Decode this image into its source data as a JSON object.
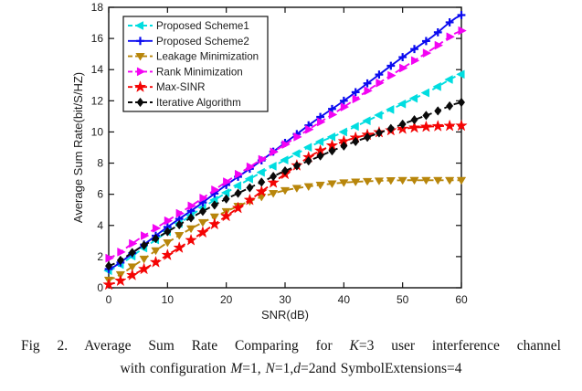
{
  "figure": {
    "caption": {
      "line1_runs": [
        {
          "text": "Fig 2. ",
          "italic": false
        },
        {
          "text": "Average Sum Rate Comparing for ",
          "italic": false
        },
        {
          "text": "K",
          "italic": true
        },
        {
          "text": "=3 user interference channel",
          "italic": false
        }
      ],
      "line2_runs": [
        {
          "text": "with configuration ",
          "italic": false
        },
        {
          "text": "M",
          "italic": true
        },
        {
          "text": "=1, ",
          "italic": false
        },
        {
          "text": "N",
          "italic": true
        },
        {
          "text": "=1,",
          "italic": false
        },
        {
          "text": "d",
          "italic": true
        },
        {
          "text": "=2and SymbolExtensions=4",
          "italic": false
        }
      ]
    }
  },
  "chart_data": {
    "type": "line",
    "title": "",
    "xlabel": "SNR(dB)",
    "ylabel": "Average Sum Rate(bit/S/HZ)",
    "xlim": [
      0,
      60
    ],
    "ylim": [
      0,
      18
    ],
    "xticks": [
      0,
      10,
      20,
      30,
      40,
      50,
      60
    ],
    "yticks": [
      0,
      2,
      4,
      6,
      8,
      10,
      12,
      14,
      16,
      18
    ],
    "grid": false,
    "legend_position": "top-left",
    "marker_step_db": 2,
    "x": [
      0,
      5,
      10,
      15,
      20,
      25,
      30,
      35,
      40,
      45,
      50,
      55,
      60
    ],
    "series": [
      {
        "name": "Proposed Scheme1",
        "color": "#00dde0",
        "marker": "triangle-left",
        "line": "dashed",
        "values": [
          1.1,
          2.3,
          3.6,
          4.9,
          6.1,
          7.2,
          8.2,
          9.2,
          10.0,
          10.9,
          11.8,
          12.7,
          13.7
        ]
      },
      {
        "name": "Proposed Scheme2",
        "color": "#0a0af0",
        "marker": "plus",
        "line": "solid",
        "values": [
          1.2,
          2.5,
          3.9,
          5.2,
          6.6,
          7.9,
          9.3,
          10.7,
          12.0,
          13.4,
          14.8,
          16.1,
          17.5
        ]
      },
      {
        "name": "Leakage Minimization",
        "color": "#b8860b",
        "marker": "triangle-down",
        "line": "dashed",
        "values": [
          0.5,
          1.6,
          2.9,
          4.0,
          4.9,
          5.7,
          6.25,
          6.55,
          6.75,
          6.85,
          6.9,
          6.9,
          6.9
        ]
      },
      {
        "name": "Rank Minimization",
        "color": "#f303f3",
        "marker": "triangle-right",
        "line": "dashed",
        "values": [
          1.9,
          3.1,
          4.3,
          5.5,
          6.8,
          8.0,
          9.2,
          10.4,
          11.6,
          12.9,
          14.1,
          15.3,
          16.5
        ]
      },
      {
        "name": "Max-SINR",
        "color": "#f40404",
        "marker": "star",
        "line": "dashed",
        "values": [
          0.2,
          1.0,
          2.1,
          3.3,
          4.6,
          5.9,
          7.3,
          8.6,
          9.4,
          9.9,
          10.2,
          10.35,
          10.4
        ]
      },
      {
        "name": "Iterative Algorithm",
        "color": "#0a0a0a",
        "marker": "diamond",
        "line": "dashed",
        "values": [
          1.4,
          2.5,
          3.6,
          4.7,
          5.7,
          6.6,
          7.5,
          8.3,
          9.1,
          9.8,
          10.5,
          11.2,
          11.9
        ]
      }
    ]
  }
}
